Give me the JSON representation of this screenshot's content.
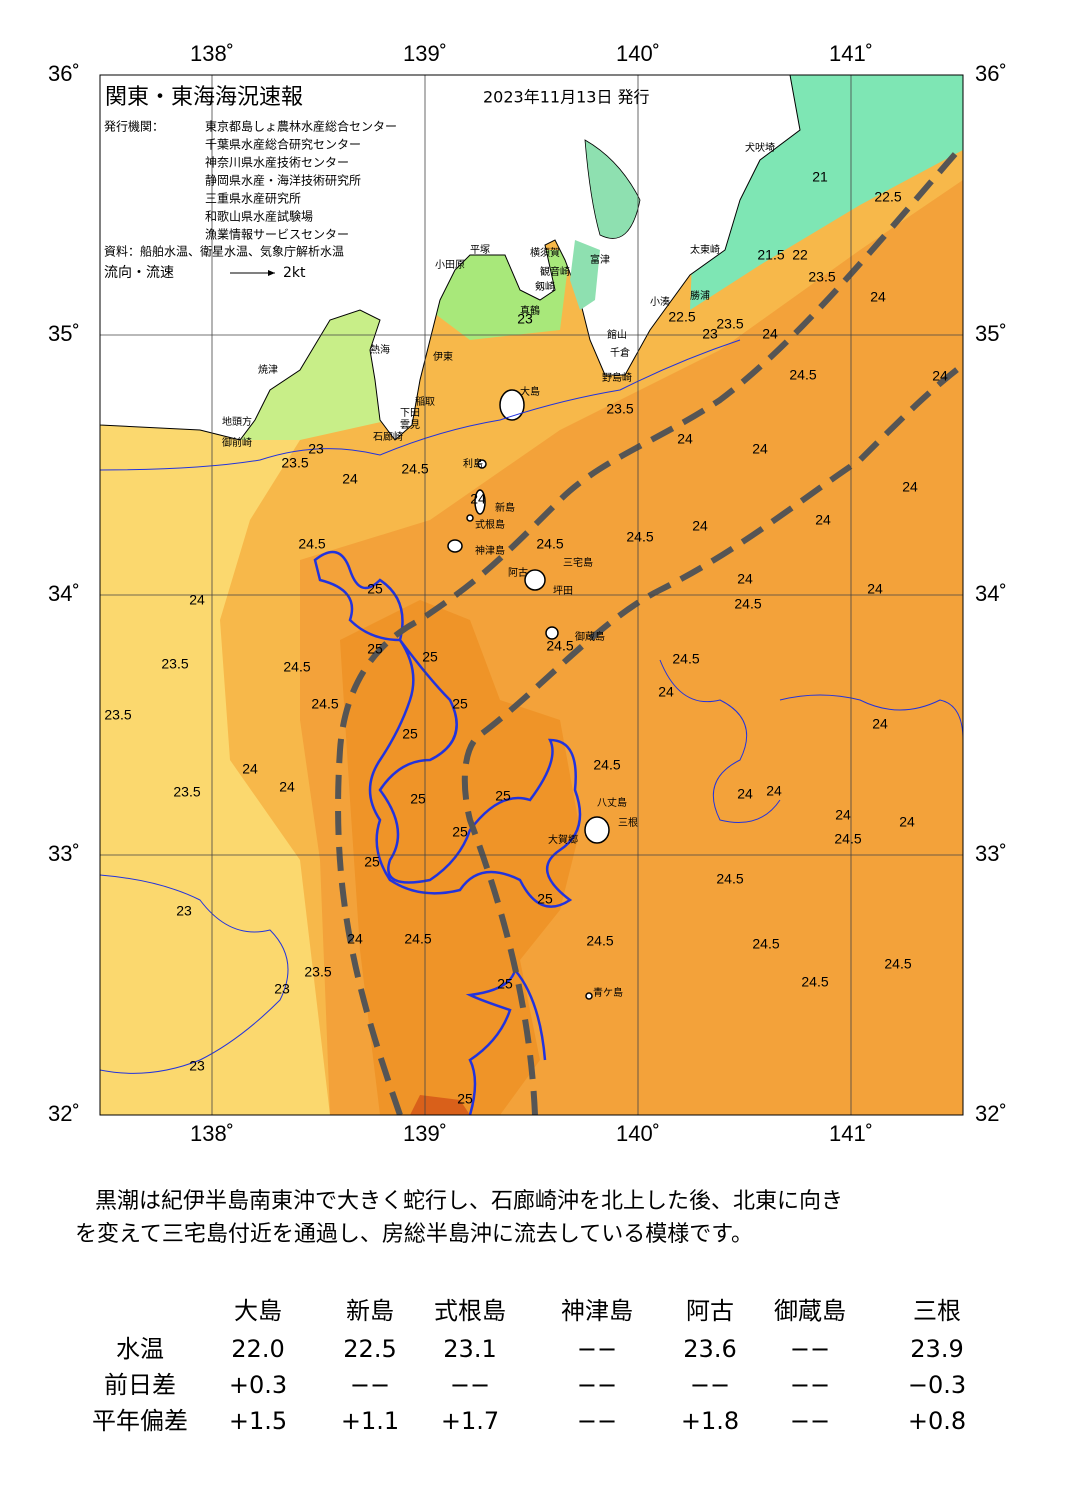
{
  "map": {
    "title": "関東・東海海況速報",
    "date": "2023年11月13日 発行",
    "issuer_label": "発行機関：",
    "issuers": [
      "東京都島しょ農林水産総合センター",
      "千葉県水産総合研究センター",
      "神奈川県水産技術センター",
      "静岡県水産・海洋技術研究所",
      "三重県水産研究所",
      "和歌山県水産試験場",
      "漁業情報サービスセンター"
    ],
    "source": "資料：船舶水温、衛星水温、気象庁解析水温",
    "legend_label": "流向・流速",
    "legend_scale": "2kt",
    "lon_ticks": [
      {
        "value": 138,
        "label": "138˚"
      },
      {
        "value": 139,
        "label": "139˚"
      },
      {
        "value": 140,
        "label": "140˚"
      },
      {
        "value": 141,
        "label": "141˚"
      }
    ],
    "lat_ticks": [
      {
        "value": 36,
        "label": "36˚"
      },
      {
        "value": 35,
        "label": "35˚"
      },
      {
        "value": 34,
        "label": "34˚"
      },
      {
        "value": 33,
        "label": "33˚"
      },
      {
        "value": 32,
        "label": "32˚"
      }
    ],
    "places": [
      "犬吠埼",
      "太東崎",
      "勝浦",
      "小湊",
      "館山",
      "千倉",
      "野島崎",
      "富津",
      "横須賀",
      "観音崎",
      "剱崎",
      "平塚",
      "小田原",
      "真鶴",
      "熱海",
      "伊東",
      "稲取",
      "下田",
      "雲見",
      "石廊崎",
      "焼津",
      "地頭方",
      "御前崎",
      "大島",
      "利島",
      "新島",
      "式根島",
      "神津島",
      "阿古",
      "三宅島",
      "坪田",
      "御蔵島",
      "八丈島",
      "三根",
      "大賀郷",
      "青ケ島"
    ],
    "contour_labels": [
      23,
      23.5,
      24,
      23,
      23.5,
      24.5,
      24,
      24,
      24.5,
      24.5,
      24.5,
      24,
      24,
      24,
      24,
      24,
      24,
      24.5,
      24,
      23.5,
      24.5,
      24.5,
      23.5,
      24.5,
      24.5,
      24,
      24.5,
      24,
      23.5,
      24,
      24,
      24,
      24,
      24.5,
      24,
      24,
      24.5,
      23,
      24.5,
      24,
      24.5,
      24.5,
      23.5,
      23,
      24.5,
      24.5,
      23,
      25,
      25,
      25,
      25,
      25,
      25,
      25,
      25,
      25,
      25,
      25,
      25,
      23.5,
      22,
      21.5,
      21,
      22.5,
      24,
      23.5,
      23,
      22.5,
      24,
      24.5,
      24
    ]
  },
  "description": [
    "黒潮は紀伊半島南東沖で大きく蛇行し、石廊崎沖を北上した後、北東に向き",
    "を変えて三宅島付近を通過し、房総半島沖に流去している模様です。"
  ],
  "table": {
    "columns": [
      "大島",
      "新島",
      "式根島",
      "神津島",
      "阿古",
      "御蔵島",
      "三根"
    ],
    "rows": [
      {
        "label": "水温",
        "values": [
          "22.0",
          "22.5",
          "23.1",
          "−−",
          "23.6",
          "−−",
          "23.9"
        ]
      },
      {
        "label": "前日差",
        "values": [
          "+0.3",
          "−−",
          "−−",
          "−−",
          "−−",
          "−−",
          "−0.3"
        ]
      },
      {
        "label": "平年偏差",
        "values": [
          "+1.5",
          "+1.1",
          "+1.7",
          "−−",
          "+1.8",
          "−−",
          "+0.8"
        ]
      }
    ]
  }
}
